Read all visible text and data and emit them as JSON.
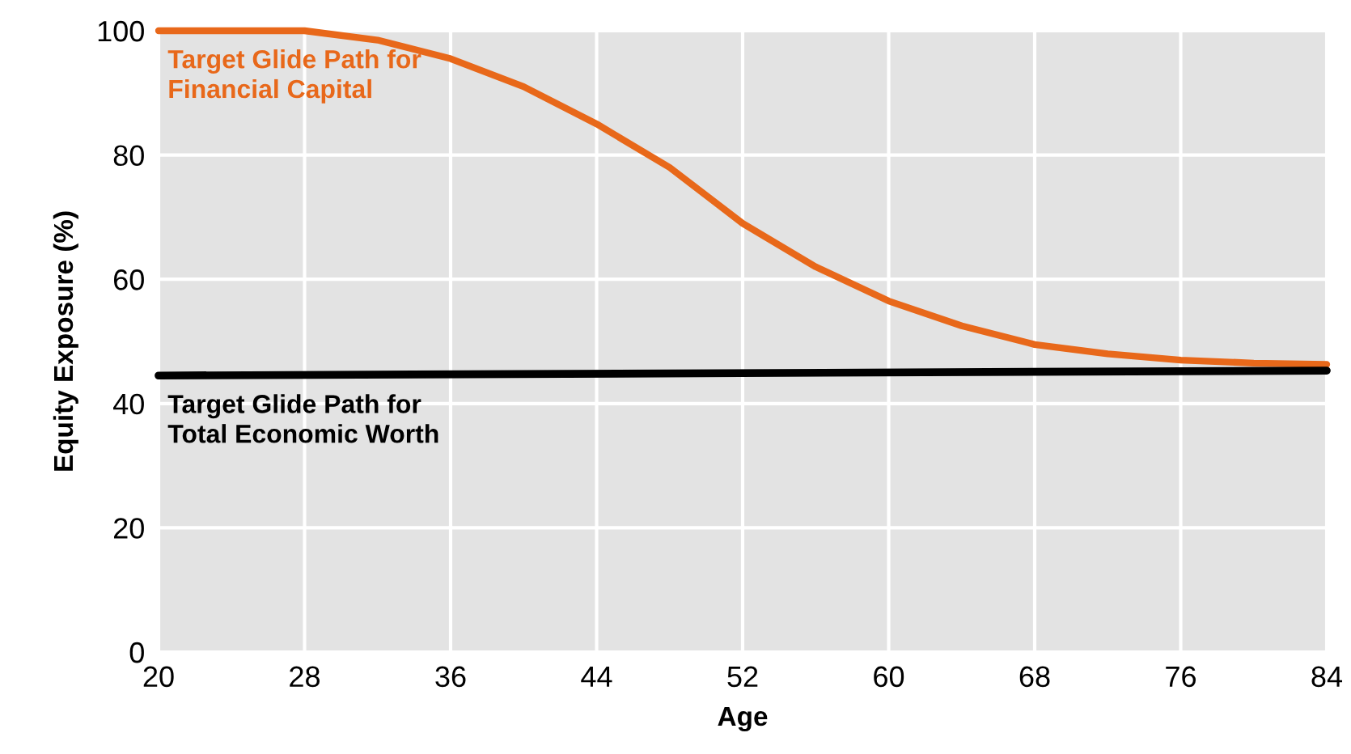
{
  "chart_data": {
    "type": "line",
    "xlabel": "Age",
    "ylabel": "Equity Exposure (%)",
    "xlim": [
      20,
      84
    ],
    "xticks": [
      20,
      28,
      36,
      44,
      52,
      60,
      68,
      76,
      84
    ],
    "ylim": [
      0,
      100
    ],
    "yticks": [
      0,
      20,
      40,
      60,
      80,
      100
    ],
    "grid": true,
    "legend": false,
    "marker": "none",
    "line_style": "solid",
    "series": [
      {
        "name": "Target Glide Path for\nFinancial Capital",
        "color": "#e8681a",
        "x": [
          20,
          24,
          26,
          28,
          32,
          36,
          40,
          44,
          48,
          52,
          56,
          60,
          64,
          68,
          72,
          76,
          80,
          84
        ],
        "values": [
          100,
          100,
          100,
          100,
          98.5,
          95.5,
          91,
          85,
          78,
          69,
          62,
          56.5,
          52.5,
          49.5,
          48,
          47,
          46.5,
          46.3
        ]
      },
      {
        "name": "Target Glide Path for\nTotal Economic Worth",
        "color": "#000000",
        "x": [
          20,
          84
        ],
        "values": [
          44.5,
          45.3
        ]
      }
    ]
  }
}
